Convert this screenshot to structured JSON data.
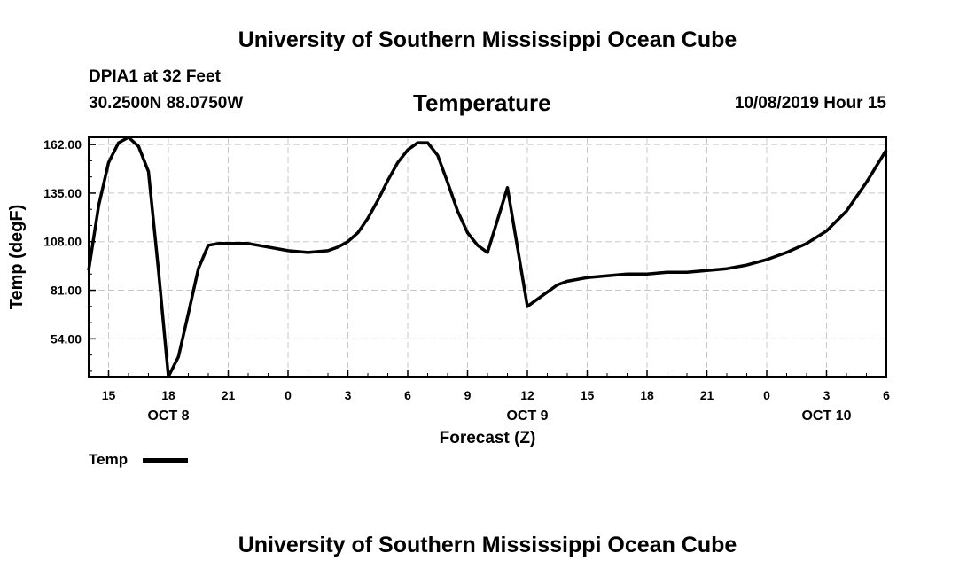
{
  "header": {
    "title": "University of Southern Mississippi Ocean Cube",
    "station": "DPIA1 at 32 Feet",
    "location": "30.2500N 88.0750W",
    "date": "10/08/2019 Hour 15"
  },
  "footer": {
    "title": "University of Southern Mississippi Ocean Cube"
  },
  "legend": {
    "label": "Temp"
  },
  "chart_data": {
    "type": "line",
    "title": "Temperature",
    "xlabel": "Forecast (Z)",
    "ylabel": "Temp (degF)",
    "ylim": [
      33,
      166
    ],
    "xlim": [
      14,
      54
    ],
    "grid": true,
    "legend_position": "bottom-left",
    "x_ticks": [
      {
        "x": 15,
        "label": "15"
      },
      {
        "x": 18,
        "label": "18"
      },
      {
        "x": 21,
        "label": "21"
      },
      {
        "x": 24,
        "label": "0"
      },
      {
        "x": 27,
        "label": "3"
      },
      {
        "x": 30,
        "label": "6"
      },
      {
        "x": 33,
        "label": "9"
      },
      {
        "x": 36,
        "label": "12"
      },
      {
        "x": 39,
        "label": "15"
      },
      {
        "x": 42,
        "label": "18"
      },
      {
        "x": 45,
        "label": "21"
      },
      {
        "x": 48,
        "label": "0"
      },
      {
        "x": 51,
        "label": "3"
      },
      {
        "x": 54,
        "label": "6"
      }
    ],
    "day_labels": [
      {
        "x": 18,
        "label": "OCT 8"
      },
      {
        "x": 36,
        "label": "OCT 9"
      },
      {
        "x": 51,
        "label": "OCT 10"
      }
    ],
    "y_ticks": [
      {
        "y": 54,
        "label": "54.00"
      },
      {
        "y": 81,
        "label": "81.00"
      },
      {
        "y": 108,
        "label": "108.00"
      },
      {
        "y": 135,
        "label": "135.00"
      },
      {
        "y": 162,
        "label": "162.00"
      }
    ],
    "series": [
      {
        "name": "Temp",
        "x": [
          14,
          14.5,
          15,
          15.5,
          16,
          16.5,
          17,
          17.5,
          18,
          18.5,
          19,
          19.5,
          20,
          20.5,
          21,
          21.5,
          22,
          23,
          24,
          25,
          26,
          26.5,
          27,
          27.5,
          28,
          28.5,
          29,
          29.5,
          30,
          30.5,
          31,
          31.5,
          32,
          32.5,
          33,
          33.5,
          34,
          35,
          36,
          36.5,
          37,
          37.5,
          38,
          39,
          40,
          41,
          42,
          43,
          44,
          45,
          46,
          47,
          48,
          49,
          50,
          51,
          52,
          53,
          54
        ],
        "values": [
          92,
          128,
          152,
          163,
          166,
          161,
          147,
          92,
          33,
          44,
          68,
          93,
          106,
          107,
          107,
          107,
          107,
          105,
          103,
          102,
          103,
          105,
          108,
          113,
          121,
          131,
          142,
          152,
          159,
          163,
          163,
          156,
          141,
          125,
          113,
          106,
          102,
          138,
          72,
          76,
          80,
          84,
          86,
          88,
          89,
          90,
          90,
          91,
          91,
          92,
          93,
          95,
          98,
          102,
          107,
          114,
          125,
          141,
          159
        ]
      }
    ]
  }
}
